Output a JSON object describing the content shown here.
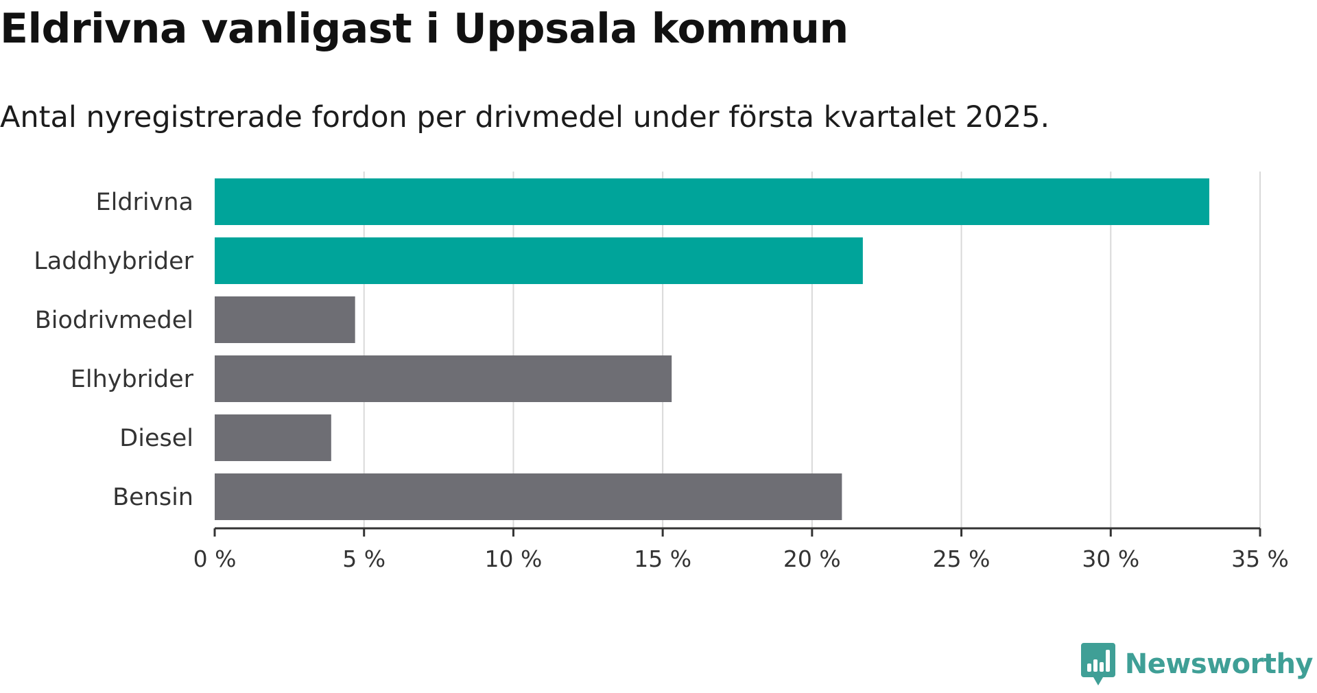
{
  "header": {
    "title": "Eldrivna vanligast i Uppsala kommun",
    "subtitle": "Antal nyregistrerade fordon per drivmedel under första kvartalet 2025."
  },
  "chart_data": {
    "type": "bar",
    "orientation": "horizontal",
    "categories": [
      "Eldrivna",
      "Laddhybrider",
      "Biodrivmedel",
      "Elhybrider",
      "Diesel",
      "Bensin"
    ],
    "values": [
      33.3,
      21.7,
      4.7,
      15.3,
      3.9,
      21.0
    ],
    "bar_colors": [
      "#00a49a",
      "#00a49a",
      "#6e6e74",
      "#6e6e74",
      "#6e6e74",
      "#6e6e74"
    ],
    "xlim": [
      0,
      35
    ],
    "xticks": [
      0,
      5,
      10,
      15,
      20,
      25,
      30,
      35
    ],
    "xtick_labels": [
      "0 %",
      "5 %",
      "10 %",
      "15 %",
      "20 %",
      "25 %",
      "30 %",
      "35 %"
    ],
    "title": "Eldrivna vanligast i Uppsala kommun",
    "subtitle": "Antal nyregistrerade fordon per drivmedel under första kvartalet 2025.",
    "grid": "vertical"
  },
  "branding": {
    "name": "Newsworthy",
    "logo_icon": "newsworthy-logo-icon",
    "color": "#3f9f96"
  }
}
